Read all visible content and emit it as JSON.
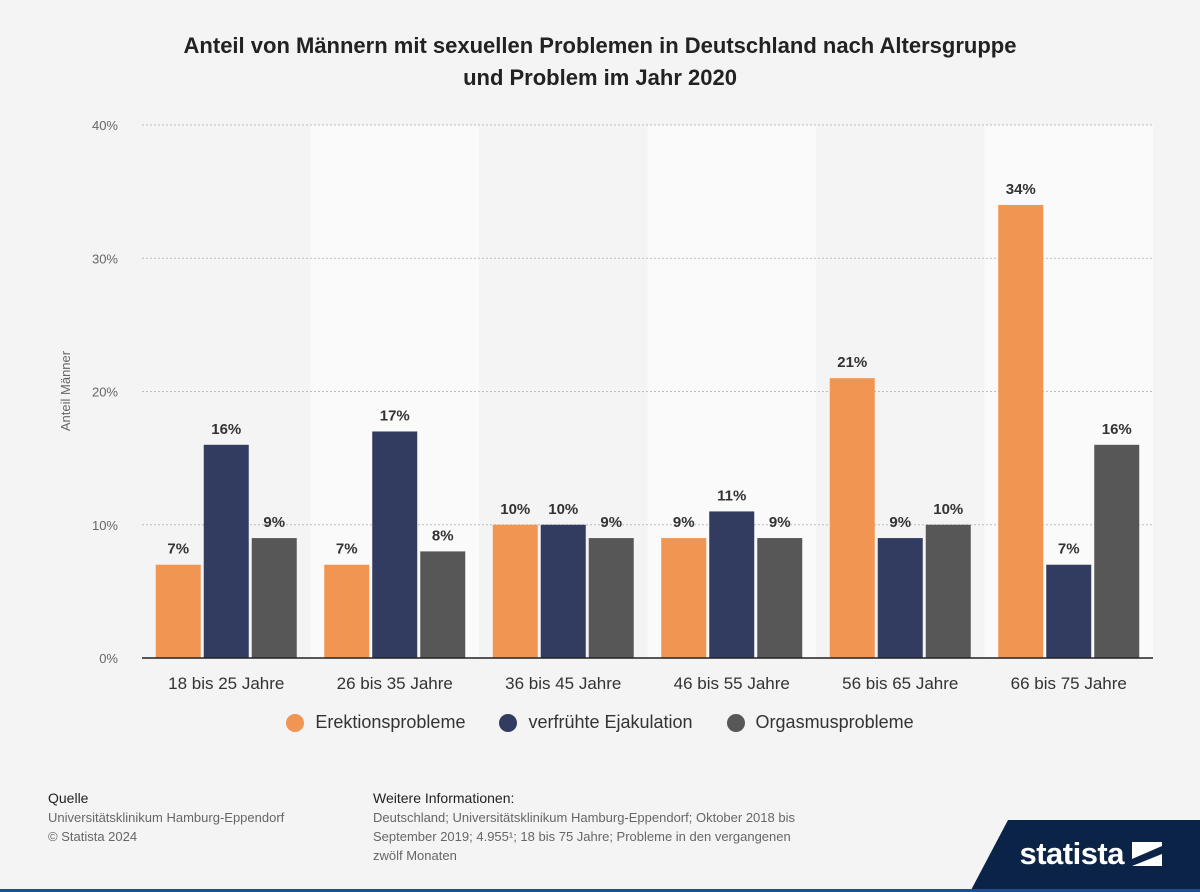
{
  "colors": {
    "erektion": "#f09552",
    "ejakulation": "#323b60",
    "orgasmus": "#575757",
    "grid": "#bdbdbd",
    "axis": "#222222",
    "band": "#fafafa"
  },
  "chart_data": {
    "type": "bar",
    "title": "Anteil von Männern mit sexuellen Problemen in Deutschland nach Altersgruppe und Problem im Jahr 2020",
    "title_lines": [
      "Anteil von Männern mit sexuellen Problemen in Deutschland nach Altersgruppe",
      "und Problem im Jahr 2020"
    ],
    "xlabel": "",
    "ylabel": "Anteil Männer",
    "ylim": [
      0,
      40
    ],
    "yticks": [
      0,
      10,
      20,
      30,
      40
    ],
    "ytick_labels": [
      "0%",
      "10%",
      "20%",
      "30%",
      "40%"
    ],
    "grid": true,
    "legend_position": "bottom",
    "categories": [
      "18 bis 25 Jahre",
      "26 bis 35 Jahre",
      "36 bis 45 Jahre",
      "46 bis 55 Jahre",
      "56 bis 65 Jahre",
      "66 bis 75 Jahre"
    ],
    "series": [
      {
        "name": "Erektionsprobleme",
        "color": "#f09552",
        "values": [
          7,
          7,
          10,
          9,
          21,
          34
        ],
        "labels": [
          "7%",
          "7%",
          "10%",
          "9%",
          "21%",
          "34%"
        ]
      },
      {
        "name": "verfrühte Ejakulation",
        "color": "#323b60",
        "values": [
          16,
          17,
          10,
          11,
          9,
          7
        ],
        "labels": [
          "16%",
          "17%",
          "10%",
          "11%",
          "9%",
          "7%"
        ]
      },
      {
        "name": "Orgasmusprobleme",
        "color": "#575757",
        "values": [
          9,
          8,
          9,
          9,
          10,
          16
        ],
        "labels": [
          "9%",
          "8%",
          "9%",
          "9%",
          "10%",
          "16%"
        ]
      }
    ]
  },
  "footer": {
    "source_heading": "Quelle",
    "source_lines": [
      "Universitätsklinikum Hamburg-Eppendorf",
      "© Statista 2024"
    ],
    "info_heading": "Weitere Informationen:",
    "info_lines": [
      "Deutschland; Universitätsklinikum Hamburg-Eppendorf; Oktober 2018 bis",
      "September 2019; 4.955¹; 18 bis 75 Jahre; Probleme in den vergangenen",
      "zwölf Monaten"
    ]
  },
  "brand": {
    "name": "statista",
    "logo_icon": "statista-logo-icon"
  }
}
